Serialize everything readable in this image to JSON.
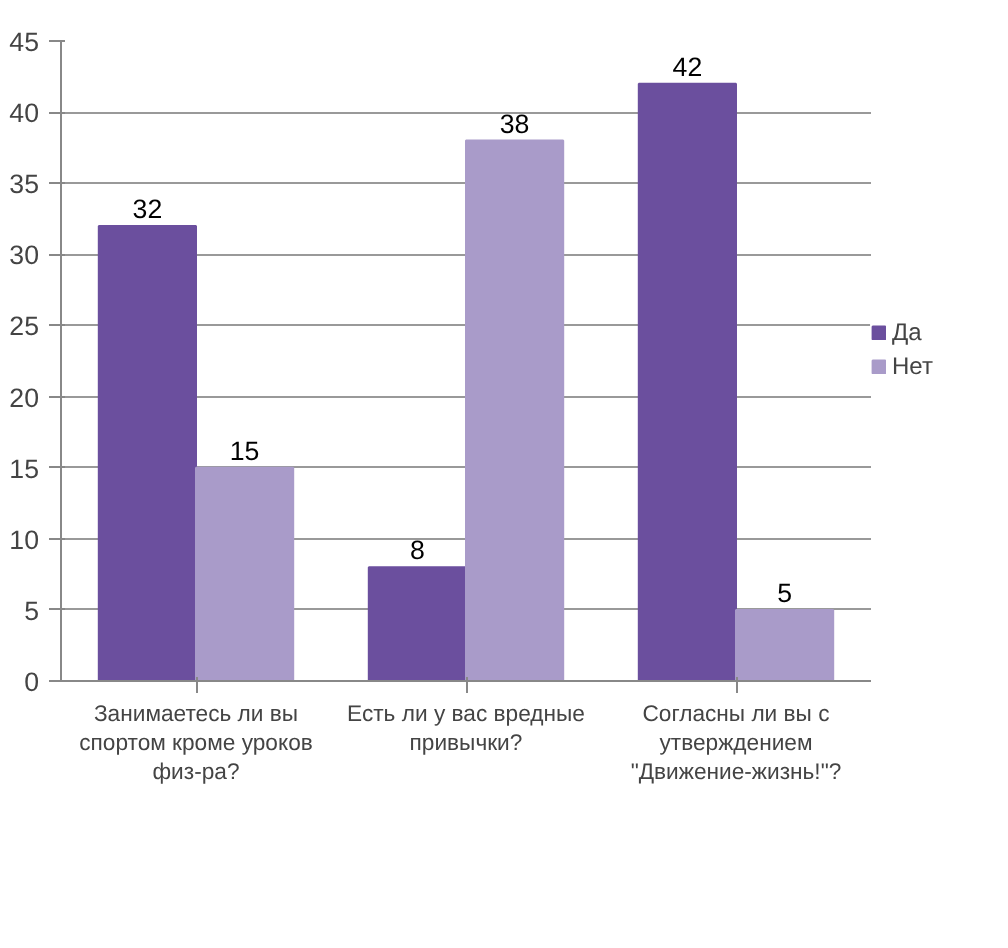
{
  "chart_data": {
    "type": "bar",
    "categories": [
      "Занимаетесь ли вы спортом кроме уроков физ-ра?",
      "Есть ли у вас вредные привычки?",
      "Согласны ли вы с утверждением \"Движение-жизнь!\"?"
    ],
    "series": [
      {
        "name": "Да",
        "color": "#6b4f9e",
        "values": [
          32,
          8,
          42
        ]
      },
      {
        "name": "Нет",
        "color": "#a99bc9",
        "values": [
          15,
          38,
          5
        ]
      }
    ],
    "ylim": [
      0,
      45
    ],
    "yticks": [
      0,
      5,
      10,
      15,
      20,
      25,
      30,
      35,
      40,
      45
    ],
    "grid": "y",
    "legend": "right",
    "data_labels": true
  }
}
